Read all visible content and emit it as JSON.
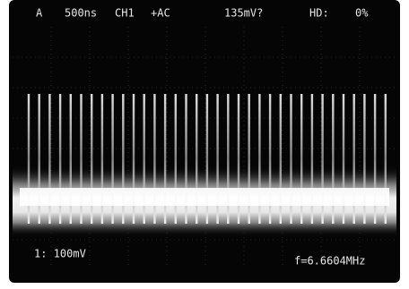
{
  "header": {
    "channel_label": "A",
    "timebase": "500ns",
    "channel": "CH1",
    "coupling": "+AC",
    "measurement": "135mV?",
    "hd_label": "HD:",
    "hd_value": "0%"
  },
  "footer": {
    "scale": "1: 100mV",
    "frequency": "f=6.6604MHz"
  }
}
